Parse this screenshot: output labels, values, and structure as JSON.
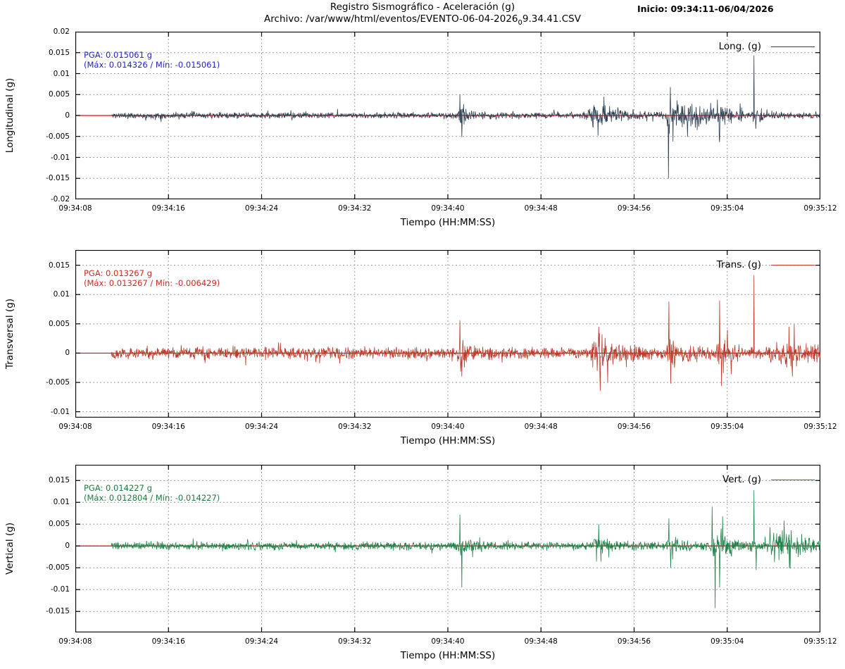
{
  "page": {
    "title": "Registro Sismográfico - Aceleración (g)",
    "archivo_pre": "Archivo: /var/www/html/eventos/EVENTO-06-04-2026",
    "archivo_sub": "0",
    "archivo_post": "9.34.41.CSV",
    "inicio": "Inicio: 09:34:11-06/04/2026"
  },
  "axes": {
    "x_tick_labels": [
      "09:34:08",
      "09:34:16",
      "09:34:24",
      "09:34:32",
      "09:34:40",
      "09:34:48",
      "09:34:56",
      "09:35:04",
      "09:35:12"
    ],
    "x_label": "Tiempo (HH:MM:SS)",
    "x_start_s": 0,
    "x_end_s": 64,
    "data_start_s": 3.1,
    "grid_color": "#9e9e9e",
    "zero_line_color": "#ff0000"
  },
  "chart_data": [
    {
      "type": "line",
      "name": "longitudinal",
      "ylabel": "Longitudinal (g)",
      "legend": "Long. (g)",
      "color": "#2e4053",
      "annotation_color": "#2323cc",
      "pga_line1": "PGA: 0.015061 g",
      "pga_line2": "(Máx: 0.014326 / Mín: -0.015061)",
      "pga": 0.015061,
      "max": 0.014326,
      "min": -0.015061,
      "ylim": [
        -0.02,
        0.02
      ],
      "ytick_values": [
        0.02,
        0.015,
        0.01,
        0.005,
        0,
        -0.005,
        -0.01,
        -0.015,
        -0.02
      ],
      "ytick_labels": [
        "0.02",
        "0.015",
        "0.01",
        "0.005",
        "0",
        "-0.005",
        "-0.01",
        "-0.015",
        "-0.02"
      ],
      "seed": 11,
      "baseline_noise": 0.001,
      "bursts": [
        {
          "t": 33.1,
          "rise": 0.12,
          "fall": 0.9,
          "amp": 0.0028
        },
        {
          "t": 44.6,
          "rise": 0.5,
          "fall": 2.0,
          "amp": 0.0038
        },
        {
          "t": 51.0,
          "rise": 0.15,
          "fall": 2.8,
          "amp": 0.0058
        },
        {
          "t": 55.3,
          "rise": 0.15,
          "fall": 0.6,
          "amp": 0.0024
        },
        {
          "t": 58.3,
          "rise": 0.1,
          "fall": 0.8,
          "amp": 0.0016
        }
      ],
      "spikes": [
        {
          "t": 33.05,
          "v": 0.005
        },
        {
          "t": 33.2,
          "v": -0.0052
        },
        {
          "t": 44.9,
          "v": -0.0048
        },
        {
          "t": 45.4,
          "v": 0.0045
        },
        {
          "t": 50.95,
          "v": -0.015061
        },
        {
          "t": 51.1,
          "v": 0.0068
        },
        {
          "t": 51.35,
          "v": -0.0062
        },
        {
          "t": 55.15,
          "v": 0.0038
        },
        {
          "t": 55.3,
          "v": -0.0056
        },
        {
          "t": 58.3,
          "v": 0.014326
        },
        {
          "t": 58.45,
          "v": -0.0032
        }
      ]
    },
    {
      "type": "line",
      "name": "transversal",
      "ylabel": "Transversal (g)",
      "legend": "Trans. (g)",
      "color": "#c0392b",
      "annotation_color": "#cc2a1e",
      "pga_line1": "PGA: 0.013267 g",
      "pga_line2": "(Máx: 0.013267 / Mín: -0.006429)",
      "pga": 0.013267,
      "max": 0.013267,
      "min": -0.006429,
      "ylim": [
        -0.011,
        0.0176
      ],
      "ytick_values": [
        0.015,
        0.01,
        0.005,
        0,
        -0.005,
        -0.01
      ],
      "ytick_labels": [
        "0.015",
        "0.01",
        "0.005",
        "0",
        "-0.005",
        "-0.01"
      ],
      "seed": 22,
      "baseline_noise": 0.0014,
      "bursts": [
        {
          "t": 33.1,
          "rise": 0.12,
          "fall": 0.7,
          "amp": 0.0026
        },
        {
          "t": 44.8,
          "rise": 0.5,
          "fall": 1.8,
          "amp": 0.004
        },
        {
          "t": 51.0,
          "rise": 0.15,
          "fall": 1.2,
          "amp": 0.003
        },
        {
          "t": 55.4,
          "rise": 0.2,
          "fall": 0.9,
          "amp": 0.0032
        },
        {
          "t": 60.8,
          "rise": 0.8,
          "fall": 2.5,
          "amp": 0.0026
        }
      ],
      "spikes": [
        {
          "t": 33.05,
          "v": 0.0056
        },
        {
          "t": 33.2,
          "v": -0.004
        },
        {
          "t": 44.95,
          "v": 0.0045
        },
        {
          "t": 45.1,
          "v": -0.006429
        },
        {
          "t": 51.0,
          "v": 0.0088
        },
        {
          "t": 51.15,
          "v": -0.0052
        },
        {
          "t": 55.35,
          "v": 0.009
        },
        {
          "t": 55.5,
          "v": -0.0056
        },
        {
          "t": 58.3,
          "v": 0.013267
        },
        {
          "t": 61.3,
          "v": 0.0045
        },
        {
          "t": 61.6,
          "v": -0.004
        }
      ]
    },
    {
      "type": "line",
      "name": "vertical",
      "ylabel": "Vertical (g)",
      "legend": "Vert. (g)",
      "color": "#1e8449",
      "annotation_color": "#1d7a3e",
      "pga_line1": "PGA: 0.014227 g",
      "pga_line2": "(Máx: 0.012804 / Mín: -0.014227)",
      "pga": 0.014227,
      "max": 0.012804,
      "min": -0.014227,
      "ylim": [
        -0.0198,
        0.0186
      ],
      "ytick_values": [
        0.015,
        0.01,
        0.005,
        0,
        -0.005,
        -0.01,
        -0.015
      ],
      "ytick_labels": [
        "0.015",
        "0.01",
        "0.005",
        "0",
        "-0.005",
        "-0.01",
        "-0.015"
      ],
      "seed": 33,
      "baseline_noise": 0.0013,
      "bursts": [
        {
          "t": 33.1,
          "rise": 0.12,
          "fall": 0.8,
          "amp": 0.0032
        },
        {
          "t": 44.8,
          "rise": 0.4,
          "fall": 1.2,
          "amp": 0.0028
        },
        {
          "t": 51.0,
          "rise": 0.15,
          "fall": 0.9,
          "amp": 0.0026
        },
        {
          "t": 54.9,
          "rise": 0.3,
          "fall": 1.6,
          "amp": 0.0042
        },
        {
          "t": 60.3,
          "rise": 0.6,
          "fall": 2.4,
          "amp": 0.004
        }
      ],
      "spikes": [
        {
          "t": 33.05,
          "v": 0.0072
        },
        {
          "t": 33.2,
          "v": -0.0095
        },
        {
          "t": 44.95,
          "v": 0.005
        },
        {
          "t": 45.15,
          "v": -0.0036
        },
        {
          "t": 51.0,
          "v": 0.0063
        },
        {
          "t": 51.15,
          "v": -0.005
        },
        {
          "t": 54.7,
          "v": 0.009
        },
        {
          "t": 54.95,
          "v": -0.014227
        },
        {
          "t": 55.35,
          "v": -0.0095
        },
        {
          "t": 55.6,
          "v": 0.0068
        },
        {
          "t": 58.3,
          "v": 0.012804
        },
        {
          "t": 58.5,
          "v": -0.0055
        },
        {
          "t": 60.9,
          "v": 0.0058
        },
        {
          "t": 61.4,
          "v": -0.0052
        }
      ]
    }
  ]
}
